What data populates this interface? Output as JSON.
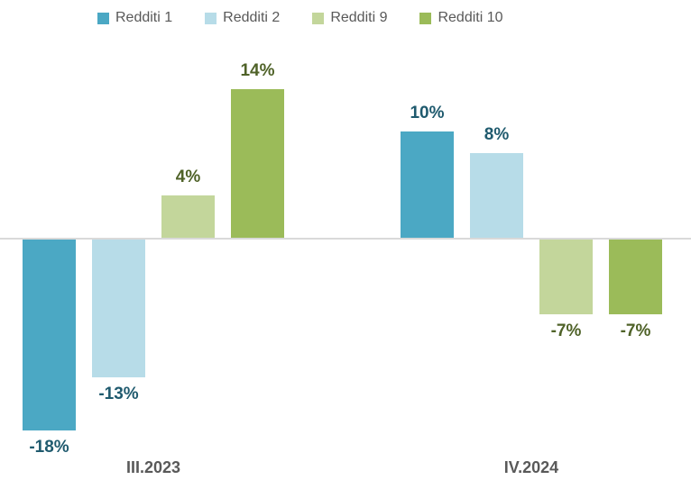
{
  "chart_data": {
    "type": "bar",
    "title": "",
    "categories": [
      "III.2023",
      "IV.2024"
    ],
    "series": [
      {
        "name": "Redditi 1",
        "color": "#4ba8c4",
        "label_color": "#1f5a6e",
        "values": [
          -18,
          10
        ],
        "labels": [
          "-18%",
          "10%"
        ]
      },
      {
        "name": "Redditi 2",
        "color": "#b7dce8",
        "label_color": "#1f5a6e",
        "values": [
          -13,
          8
        ],
        "labels": [
          "-13%",
          "8%"
        ]
      },
      {
        "name": "Redditi 9",
        "color": "#c3d69b",
        "label_color": "#4f6228",
        "values": [
          4,
          -7
        ],
        "labels": [
          "4%",
          "-7%"
        ]
      },
      {
        "name": "Redditi 10",
        "color": "#9bbb59",
        "label_color": "#4f6228",
        "values": [
          14,
          -7
        ],
        "labels": [
          "14%",
          "-7%"
        ]
      }
    ],
    "ylim": [
      -22,
      22
    ],
    "grid": false,
    "legend_position": "top",
    "axis_line_color": "#d9d9d9",
    "category_label_color": "#595959",
    "legend_text_color": "#595959",
    "background_color": "#ffffff"
  }
}
